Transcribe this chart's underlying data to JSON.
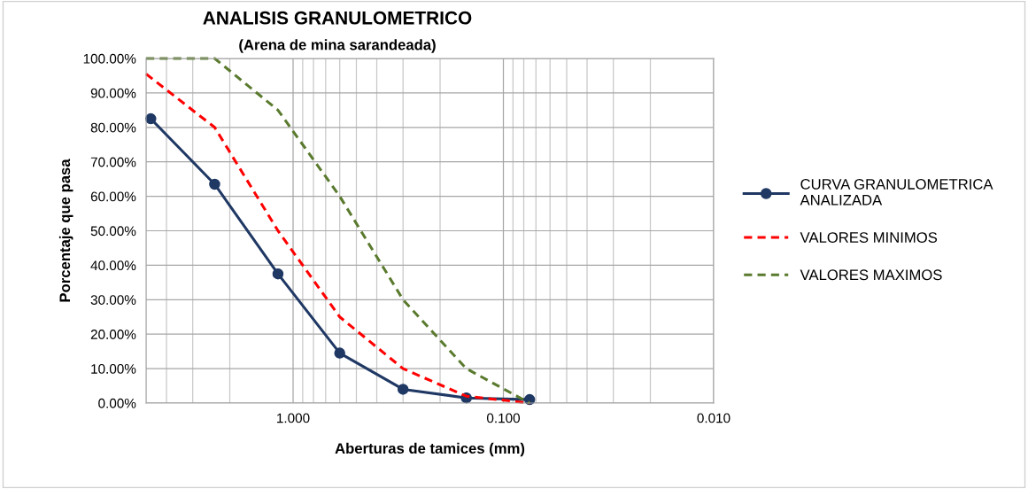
{
  "chart_data": {
    "type": "line",
    "title": "ANALISIS GRANULOMETRICO",
    "subtitle": "(Arena de mina sarandeada)",
    "xlabel": "Aberturas de tamices (mm)",
    "ylabel": "Porcentaje que pasa",
    "log": "x",
    "xlim": [
      5,
      0.01
    ],
    "xticks": [
      {
        "value": 1,
        "label": "1.000"
      },
      {
        "value": 0.1,
        "label": "0.100"
      },
      {
        "value": 0.01,
        "label": "0.010"
      }
    ],
    "ylim": [
      0,
      100
    ],
    "yticks": [
      {
        "value": 0,
        "label": "0.00%"
      },
      {
        "value": 10,
        "label": "10.00%"
      },
      {
        "value": 20,
        "label": "20.00%"
      },
      {
        "value": 30,
        "label": "30.00%"
      },
      {
        "value": 40,
        "label": "40.00%"
      },
      {
        "value": 50,
        "label": "50.00%"
      },
      {
        "value": 60,
        "label": "60.00%"
      },
      {
        "value": 70,
        "label": "70.00%"
      },
      {
        "value": 80,
        "label": "80.00%"
      },
      {
        "value": 90,
        "label": "90.00%"
      },
      {
        "value": 100,
        "label": "100.00%"
      }
    ],
    "grid": true,
    "legend": "right",
    "series": [
      {
        "name": "CURVA GRANULOMETRICA\nANALIZADA",
        "color": "#1f3864",
        "x": [
          4.75,
          2.36,
          1.18,
          0.6,
          0.3,
          0.15,
          0.075
        ],
        "values": [
          82.5,
          63.5,
          37.5,
          14.5,
          4,
          1.5,
          1
        ],
        "marker": "circle",
        "line_style": "solid"
      },
      {
        "name": "VALORES MINIMOS",
        "color": "#ff0000",
        "x": [
          5,
          2.36,
          1.18,
          0.6,
          0.3,
          0.15,
          0.075
        ],
        "values": [
          95.5,
          80,
          50,
          25,
          10,
          2,
          0
        ],
        "marker": "none",
        "line_style": "dashed"
      },
      {
        "name": "VALORES MAXIMOS",
        "color": "#5a7a2e",
        "x": [
          5,
          2.36,
          1.18,
          0.6,
          0.3,
          0.15,
          0.075
        ],
        "values": [
          100,
          100,
          85,
          60,
          30,
          10,
          0
        ],
        "marker": "none",
        "line_style": "dashed"
      }
    ]
  }
}
